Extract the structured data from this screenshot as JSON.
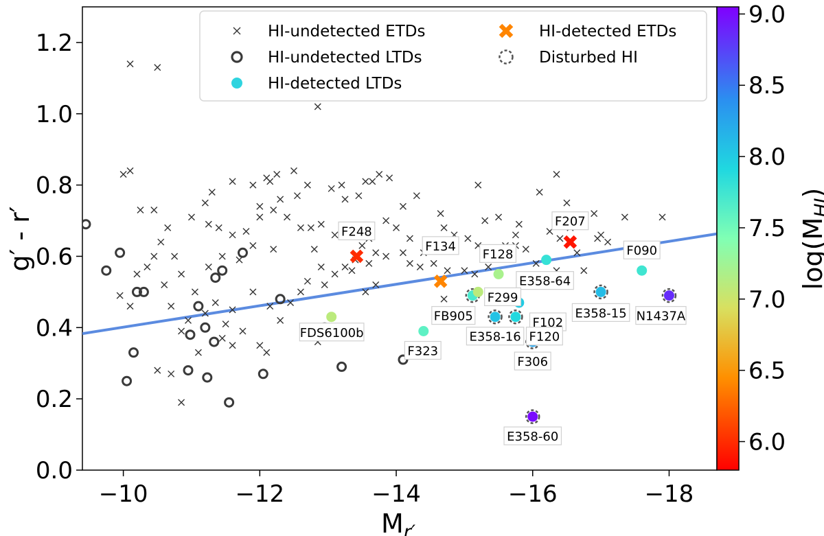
{
  "chart_data": {
    "type": "scatter",
    "title": "",
    "xlabel": "M",
    "xlabel_sub": "r′",
    "ylabel": "g′ - r′",
    "xlim": [
      -9.4,
      -18.7
    ],
    "ylim": [
      0.0,
      1.3
    ],
    "x_inverted": true,
    "x_ticks": [
      -10,
      -12,
      -14,
      -16,
      -18
    ],
    "x_tick_labels": [
      "−10",
      "−12",
      "−14",
      "−16",
      "−18"
    ],
    "y_ticks": [
      0.0,
      0.2,
      0.4,
      0.6,
      0.8,
      1.0,
      1.2
    ],
    "y_tick_labels": [
      "0.0",
      "0.2",
      "0.4",
      "0.6",
      "0.8",
      "1.0",
      "1.2"
    ],
    "grid": false,
    "legend_position": "top",
    "legend": [
      {
        "label": "HI-undetected ETDs",
        "marker": "x"
      },
      {
        "label": "HI-detected ETDs",
        "marker": "X"
      },
      {
        "label": "HI-undetected LTDs",
        "marker": "o"
      },
      {
        "label": "Disturbed HI",
        "marker": "dashed-circle"
      },
      {
        "label": "HI-detected LTDs",
        "marker": "filled-circle"
      }
    ],
    "colorbar": {
      "label": "log(M",
      "label_sub": "HI",
      "label_end": ")",
      "range": [
        5.8,
        9.05
      ],
      "colormap": "rainbow",
      "ticks": [
        6.0,
        6.5,
        7.0,
        7.5,
        8.0,
        8.5,
        9.0
      ],
      "tick_labels": [
        "6.0",
        "6.5",
        "7.0",
        "7.5",
        "8.0",
        "8.5",
        "9.0"
      ]
    },
    "fit_line": {
      "x": [
        -9.4,
        -18.7
      ],
      "y": [
        0.383,
        0.663
      ],
      "color": "#5b8be0"
    },
    "series": [
      {
        "name": "HI-undetected ETDs",
        "marker": "x",
        "points": [
          [
            -10.1,
            1.14
          ],
          [
            -10.5,
            1.13
          ],
          [
            -12.85,
            1.02
          ],
          [
            -10.0,
            0.83
          ],
          [
            -10.1,
            0.84
          ],
          [
            -12.1,
            0.82
          ],
          [
            -12.15,
            0.81
          ],
          [
            -12.25,
            0.83
          ],
          [
            -12.5,
            0.84
          ],
          [
            -11.6,
            0.81
          ],
          [
            -11.9,
            0.8
          ],
          [
            -12.7,
            0.8
          ],
          [
            -13.2,
            0.8
          ],
          [
            -13.55,
            0.81
          ],
          [
            -13.65,
            0.81
          ],
          [
            -13.75,
            0.83
          ],
          [
            -13.9,
            0.82
          ],
          [
            -15.2,
            0.8
          ],
          [
            -16.1,
            0.78
          ],
          [
            -16.35,
            0.83
          ],
          [
            -14.3,
            0.77
          ],
          [
            -11.3,
            0.78
          ],
          [
            -11.2,
            0.75
          ],
          [
            -12.3,
            0.76
          ],
          [
            -12.55,
            0.77
          ],
          [
            -12.0,
            0.74
          ],
          [
            -13.05,
            0.79
          ],
          [
            -13.45,
            0.77
          ],
          [
            -13.25,
            0.76
          ],
          [
            -14.1,
            0.74
          ],
          [
            -15.3,
            0.7
          ],
          [
            -15.5,
            0.71
          ],
          [
            -14.65,
            0.72
          ],
          [
            -15.8,
            0.69
          ],
          [
            -16.5,
            0.75
          ],
          [
            -17.35,
            0.71
          ],
          [
            -16.9,
            0.72
          ],
          [
            -17.9,
            0.71
          ],
          [
            -10.25,
            0.73
          ],
          [
            -10.45,
            0.73
          ],
          [
            -10.65,
            0.68
          ],
          [
            -11.0,
            0.71
          ],
          [
            -11.25,
            0.69
          ],
          [
            -11.4,
            0.68
          ],
          [
            -11.6,
            0.66
          ],
          [
            -11.8,
            0.67
          ],
          [
            -12.0,
            0.71
          ],
          [
            -12.2,
            0.73
          ],
          [
            -12.4,
            0.71
          ],
          [
            -12.6,
            0.68
          ],
          [
            -12.75,
            0.68
          ],
          [
            -12.9,
            0.69
          ],
          [
            -13.1,
            0.66
          ],
          [
            -13.3,
            0.66
          ],
          [
            -13.5,
            0.63
          ],
          [
            -13.6,
            0.65
          ],
          [
            -13.7,
            0.61
          ],
          [
            -13.85,
            0.7
          ],
          [
            -14.0,
            0.68
          ],
          [
            -14.2,
            0.65
          ],
          [
            -14.4,
            0.61
          ],
          [
            -14.55,
            0.63
          ],
          [
            -14.7,
            0.68
          ],
          [
            -14.85,
            0.66
          ],
          [
            -15.05,
            0.65
          ],
          [
            -15.2,
            0.63
          ],
          [
            -15.4,
            0.61
          ],
          [
            -15.6,
            0.63
          ],
          [
            -15.75,
            0.66
          ],
          [
            -15.9,
            0.62
          ],
          [
            -16.25,
            0.67
          ],
          [
            -16.4,
            0.65
          ],
          [
            -16.55,
            0.68
          ],
          [
            -16.95,
            0.65
          ],
          [
            -17.0,
            0.66
          ],
          [
            -17.1,
            0.64
          ],
          [
            -9.95,
            0.49
          ],
          [
            -10.1,
            0.46
          ],
          [
            -10.2,
            0.55
          ],
          [
            -10.35,
            0.57
          ],
          [
            -10.45,
            0.6
          ],
          [
            -10.6,
            0.52
          ],
          [
            -10.7,
            0.46
          ],
          [
            -10.85,
            0.39
          ],
          [
            -10.95,
            0.42
          ],
          [
            -11.05,
            0.5
          ],
          [
            -11.2,
            0.44
          ],
          [
            -11.35,
            0.47
          ],
          [
            -11.5,
            0.41
          ],
          [
            -11.6,
            0.45
          ],
          [
            -11.75,
            0.39
          ],
          [
            -11.9,
            0.5
          ],
          [
            -12.0,
            0.35
          ],
          [
            -12.1,
            0.33
          ],
          [
            -12.15,
            0.46
          ],
          [
            -12.3,
            0.42
          ],
          [
            -12.45,
            0.47
          ],
          [
            -12.6,
            0.5
          ],
          [
            -12.7,
            0.53
          ],
          [
            -12.85,
            0.36
          ],
          [
            -12.95,
            0.52
          ],
          [
            -13.1,
            0.55
          ],
          [
            -13.25,
            0.57
          ],
          [
            -13.35,
            0.56
          ],
          [
            -13.55,
            0.5
          ],
          [
            -13.7,
            0.52
          ],
          [
            -10.5,
            0.28
          ],
          [
            -10.7,
            0.27
          ],
          [
            -10.85,
            0.19
          ],
          [
            -11.1,
            0.33
          ],
          [
            -11.45,
            0.37
          ],
          [
            -11.6,
            0.35
          ],
          [
            -14.2,
            0.58
          ],
          [
            -14.35,
            0.57
          ],
          [
            -14.55,
            0.58
          ],
          [
            -14.7,
            0.48
          ],
          [
            -14.75,
            0.56
          ],
          [
            -15.0,
            0.56
          ],
          [
            -15.15,
            0.55
          ],
          [
            -15.35,
            0.57
          ],
          [
            -15.55,
            0.6
          ],
          [
            -15.75,
            0.63
          ],
          [
            -16.05,
            0.58
          ],
          [
            -16.35,
            0.56
          ],
          [
            -16.65,
            0.61
          ],
          [
            -16.75,
            0.56
          ],
          [
            -16.2,
            0.52
          ],
          [
            -15.7,
            0.61
          ],
          [
            -11.9,
            0.63
          ],
          [
            -11.7,
            0.59
          ],
          [
            -12.2,
            0.62
          ],
          [
            -11.45,
            0.6
          ],
          [
            -11.25,
            0.57
          ],
          [
            -10.75,
            0.6
          ],
          [
            -10.55,
            0.64
          ],
          [
            -10.85,
            0.55
          ],
          [
            -12.8,
            0.62
          ],
          [
            -12.9,
            0.57
          ],
          [
            -13.4,
            0.59
          ],
          [
            -13.6,
            0.58
          ],
          [
            -13.85,
            0.6
          ],
          [
            -14.1,
            0.61
          ]
        ]
      },
      {
        "name": "HI-detected ETDs",
        "marker": "X",
        "points": [
          [
            -13.42,
            0.6,
            6.0
          ],
          [
            -14.65,
            0.53,
            6.4
          ],
          [
            -16.55,
            0.64,
            5.9
          ]
        ]
      },
      {
        "name": "HI-undetected LTDs",
        "marker": "o",
        "points": [
          [
            -9.45,
            0.69
          ],
          [
            -9.75,
            0.56
          ],
          [
            -9.95,
            0.61
          ],
          [
            -10.2,
            0.5
          ],
          [
            -10.3,
            0.5
          ],
          [
            -10.05,
            0.25
          ],
          [
            -10.15,
            0.33
          ],
          [
            -10.95,
            0.28
          ],
          [
            -10.98,
            0.38
          ],
          [
            -11.1,
            0.46
          ],
          [
            -11.2,
            0.4
          ],
          [
            -11.23,
            0.26
          ],
          [
            -11.33,
            0.36
          ],
          [
            -11.35,
            0.54
          ],
          [
            -11.45,
            0.56
          ],
          [
            -11.55,
            0.19
          ],
          [
            -11.75,
            0.61
          ],
          [
            -12.05,
            0.27
          ],
          [
            -12.3,
            0.48
          ],
          [
            -12.95,
            0.4
          ],
          [
            -13.2,
            0.29
          ],
          [
            -14.1,
            0.31
          ]
        ]
      },
      {
        "name": "HI-detected LTDs",
        "marker": "filled-circle",
        "points": [
          {
            "x": -13.05,
            "y": 0.43,
            "logm": 7.1,
            "label": ""
          },
          {
            "x": -14.4,
            "y": 0.39,
            "logm": 7.6,
            "label": "F323"
          },
          {
            "x": -15.12,
            "y": 0.49,
            "logm": 7.7,
            "label": "FB905",
            "disturbed": true
          },
          {
            "x": -15.2,
            "y": 0.5,
            "logm": 7.1,
            "label": ""
          },
          {
            "x": -15.5,
            "y": 0.55,
            "logm": 7.2,
            "label": "F299"
          },
          {
            "x": -15.45,
            "y": 0.43,
            "logm": 8.05,
            "label": "E358-16",
            "disturbed": true
          },
          {
            "x": -15.75,
            "y": 0.43,
            "logm": 7.9,
            "label": "F120",
            "disturbed": true
          },
          {
            "x": -15.8,
            "y": 0.47,
            "logm": 8.0,
            "label": "F102"
          },
          {
            "x": -16.0,
            "y": 0.36,
            "logm": 8.25,
            "label": "F306",
            "disturbed": true
          },
          {
            "x": -16.2,
            "y": 0.59,
            "logm": 7.8,
            "label": "E358-64"
          },
          {
            "x": -17.0,
            "y": 0.5,
            "logm": 8.1,
            "label": "E358-15",
            "disturbed": true
          },
          {
            "x": -17.6,
            "y": 0.56,
            "logm": 7.75,
            "label": "F090"
          },
          {
            "x": -18.0,
            "y": 0.49,
            "logm": 8.85,
            "label": "N1437A",
            "disturbed": true
          },
          {
            "x": -16.0,
            "y": 0.15,
            "logm": 9.0,
            "label": "E358-60",
            "disturbed": true
          }
        ]
      }
    ],
    "annotations": [
      {
        "text": "F248",
        "x": -13.42,
        "y": 0.6,
        "dx": 0,
        "dy": -37
      },
      {
        "text": "F134",
        "x": -14.65,
        "y": 0.53,
        "dx": 0,
        "dy": -52
      },
      {
        "text": "F207",
        "x": -16.55,
        "y": 0.64,
        "dx": 0,
        "dy": -31
      },
      {
        "text": "F128",
        "x": -15.5,
        "y": 0.55,
        "dx": -1,
        "dy": -30
      },
      {
        "text": "F090",
        "x": -17.6,
        "y": 0.56,
        "dx": 0,
        "dy": -30
      },
      {
        "text": "E358-64",
        "x": -16.2,
        "y": 0.59,
        "dx": -2,
        "dy": 30
      },
      {
        "text": "F299",
        "x": -15.5,
        "y": 0.55,
        "dx": 6,
        "dy": 33
      },
      {
        "text": "FDS6100b",
        "x": -12.3,
        "y": 0.48,
        "dx": 75,
        "dy": 48
      },
      {
        "text": "FB905",
        "x": -15.12,
        "y": 0.49,
        "dx": -28,
        "dy": 29
      },
      {
        "text": "F102",
        "x": -15.8,
        "y": 0.47,
        "dx": 42,
        "dy": 28
      },
      {
        "text": "E358-15",
        "x": -17.0,
        "y": 0.5,
        "dx": 0,
        "dy": 30
      },
      {
        "text": "N1437A",
        "x": -18.0,
        "y": 0.49,
        "dx": -12,
        "dy": 29
      },
      {
        "text": "E358-16",
        "x": -15.45,
        "y": 0.43,
        "dx": 0,
        "dy": 28
      },
      {
        "text": "F120",
        "x": -15.75,
        "y": 0.43,
        "dx": 42,
        "dy": 28
      },
      {
        "text": "F323",
        "x": -14.4,
        "y": 0.39,
        "dx": -1,
        "dy": 28
      },
      {
        "text": "F306",
        "x": -16.0,
        "y": 0.36,
        "dx": 0,
        "dy": 28
      },
      {
        "text": "E358-60",
        "x": -16.0,
        "y": 0.15,
        "dx": 0,
        "dy": 28
      }
    ]
  }
}
